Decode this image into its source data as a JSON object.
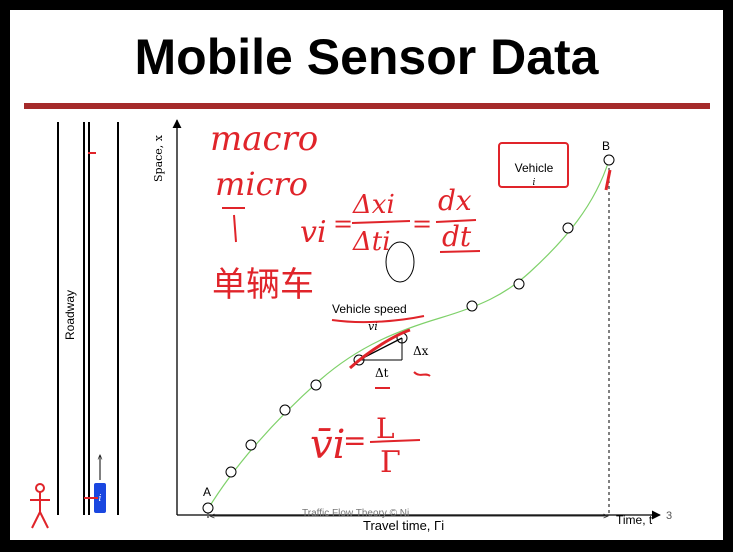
{
  "slide": {
    "title": "Mobile Sensor Data",
    "footer": "Traffic Flow Theory © Ni",
    "page_number": "3"
  },
  "diagram": {
    "roadway_label": "Roadway",
    "y_axis_label": "Space, x",
    "x_axis_label": "Time, t",
    "travel_time_label": "Travel time, Γi",
    "point_a": "A",
    "point_b": "B",
    "vehicle_box_label": "Vehicle",
    "vehicle_box_sub": "i",
    "vehicle_speed_label": "Vehicle speed",
    "vehicle_speed_sub": "vi",
    "dx_label": "Δx",
    "dt_label": "Δt",
    "car_label": "i"
  },
  "annotations": {
    "macro": "macro",
    "micro": "micro",
    "chinese": "单辆车",
    "formula_lhs": "vi",
    "formula_num": "Δxi",
    "formula_den": "Δti",
    "formula_deriv_num": "dx",
    "formula_deriv_den": "dt",
    "avg_lhs": "v̄i",
    "avg_num": "L",
    "avg_den": "Γ"
  },
  "colors": {
    "title_rule": "#a52a2a",
    "curve": "#7fd16a",
    "ink_red": "#e0242a",
    "car": "#1a47e0"
  }
}
